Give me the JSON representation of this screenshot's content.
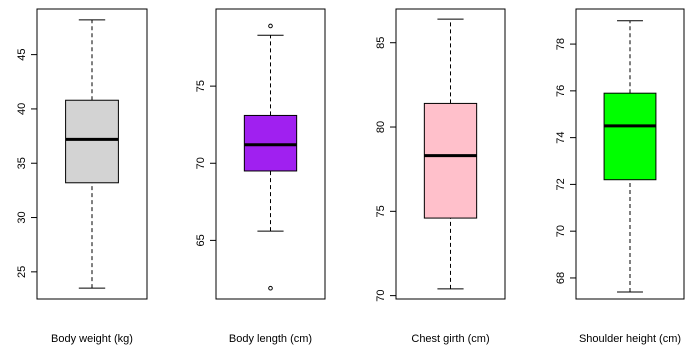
{
  "chart_data": [
    {
      "type": "box",
      "xlabel": "Body weight (kg)",
      "fill": "#d3d3d3",
      "ylim": [
        22.5,
        49.2
      ],
      "yticks": [
        25,
        30,
        35,
        40,
        45
      ],
      "box": {
        "min": 23.5,
        "q1": 33.2,
        "median": 37.2,
        "q3": 40.8,
        "max": 48.2
      },
      "outliers": []
    },
    {
      "type": "box",
      "xlabel": "Body length (cm)",
      "fill": "#a020f0",
      "ylim": [
        61.2,
        80.0
      ],
      "yticks": [
        65,
        70,
        75
      ],
      "box": {
        "min": 65.6,
        "q1": 69.5,
        "median": 71.2,
        "q3": 73.1,
        "max": 78.3
      },
      "outliers": [
        61.9,
        78.9
      ]
    },
    {
      "type": "box",
      "xlabel": "Chest girth (cm)",
      "fill": "#ffc0cb",
      "ylim": [
        69.8,
        87.0
      ],
      "yticks": [
        70,
        75,
        80,
        85
      ],
      "box": {
        "min": 70.4,
        "q1": 74.6,
        "median": 78.3,
        "q3": 81.4,
        "max": 86.4
      },
      "outliers": []
    },
    {
      "type": "box",
      "xlabel": "Shoulder height (cm)",
      "fill": "#00ff00",
      "ylim": [
        67.1,
        79.5
      ],
      "yticks": [
        68,
        70,
        72,
        74,
        76,
        78
      ],
      "box": {
        "min": 67.4,
        "q1": 72.2,
        "median": 74.5,
        "q3": 75.9,
        "max": 79.0
      },
      "outliers": []
    }
  ]
}
